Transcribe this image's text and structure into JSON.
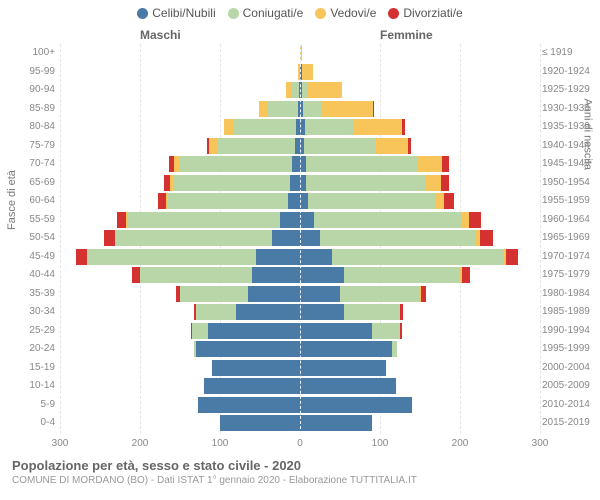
{
  "legend": [
    {
      "label": "Celibi/Nubili",
      "color": "#4a7ba6"
    },
    {
      "label": "Coniugati/e",
      "color": "#b9d6a9"
    },
    {
      "label": "Vedovi/e",
      "color": "#f8c55b"
    },
    {
      "label": "Divorziati/e",
      "color": "#d43131"
    }
  ],
  "gender_left": "Maschi",
  "gender_right": "Femmine",
  "y_left_title": "Fasce di età",
  "y_right_title": "Anni di nascita",
  "title": "Popolazione per età, sesso e stato civile - 2020",
  "subtitle": "COMUNE DI MORDANO (BO) - Dati ISTAT 1° gennaio 2020 - Elaborazione TUTTITALIA.IT",
  "x_ticks": [
    300,
    200,
    100,
    0,
    100,
    200,
    300
  ],
  "x_max": 300,
  "colors": {
    "celibi": "#4a7ba6",
    "coniugati": "#b9d6a9",
    "vedovi": "#f8c55b",
    "divorziati": "#d43131",
    "grid": "#e5e5e5",
    "background": "#ffffff"
  },
  "rows": [
    {
      "age": "100+",
      "birth": "≤ 1919",
      "m": [
        0,
        0,
        0,
        0
      ],
      "f": [
        0,
        0,
        3,
        0
      ]
    },
    {
      "age": "95-99",
      "birth": "1920-1924",
      "m": [
        0,
        0,
        3,
        0
      ],
      "f": [
        2,
        0,
        14,
        0
      ]
    },
    {
      "age": "90-94",
      "birth": "1925-1929",
      "m": [
        1,
        10,
        6,
        0
      ],
      "f": [
        3,
        6,
        44,
        0
      ]
    },
    {
      "age": "85-89",
      "birth": "1930-1934",
      "m": [
        3,
        38,
        10,
        0
      ],
      "f": [
        4,
        22,
        65,
        2
      ]
    },
    {
      "age": "80-84",
      "birth": "1935-1939",
      "m": [
        5,
        78,
        12,
        0
      ],
      "f": [
        6,
        60,
        62,
        3
      ]
    },
    {
      "age": "75-79",
      "birth": "1940-1944",
      "m": [
        6,
        98,
        10,
        2
      ],
      "f": [
        5,
        90,
        40,
        4
      ]
    },
    {
      "age": "70-74",
      "birth": "1945-1949",
      "m": [
        10,
        140,
        8,
        6
      ],
      "f": [
        8,
        140,
        30,
        8
      ]
    },
    {
      "age": "65-69",
      "birth": "1950-1954",
      "m": [
        12,
        145,
        5,
        8
      ],
      "f": [
        8,
        150,
        18,
        10
      ]
    },
    {
      "age": "60-64",
      "birth": "1955-1959",
      "m": [
        15,
        150,
        3,
        10
      ],
      "f": [
        10,
        160,
        10,
        12
      ]
    },
    {
      "age": "55-59",
      "birth": "1960-1964",
      "m": [
        25,
        190,
        2,
        12
      ],
      "f": [
        18,
        185,
        8,
        15
      ]
    },
    {
      "age": "50-54",
      "birth": "1965-1969",
      "m": [
        35,
        195,
        1,
        14
      ],
      "f": [
        25,
        195,
        5,
        16
      ]
    },
    {
      "age": "45-49",
      "birth": "1970-1974",
      "m": [
        55,
        210,
        1,
        14
      ],
      "f": [
        40,
        215,
        3,
        15
      ]
    },
    {
      "age": "40-44",
      "birth": "1975-1979",
      "m": [
        60,
        140,
        0,
        10
      ],
      "f": [
        55,
        145,
        2,
        10
      ]
    },
    {
      "age": "35-39",
      "birth": "1980-1984",
      "m": [
        65,
        85,
        0,
        5
      ],
      "f": [
        50,
        100,
        1,
        6
      ]
    },
    {
      "age": "30-34",
      "birth": "1985-1989",
      "m": [
        80,
        50,
        0,
        3
      ],
      "f": [
        55,
        70,
        0,
        4
      ]
    },
    {
      "age": "25-29",
      "birth": "1990-1994",
      "m": [
        115,
        20,
        0,
        1
      ],
      "f": [
        90,
        35,
        0,
        2
      ]
    },
    {
      "age": "20-24",
      "birth": "1995-1999",
      "m": [
        130,
        3,
        0,
        0
      ],
      "f": [
        115,
        6,
        0,
        0
      ]
    },
    {
      "age": "15-19",
      "birth": "2000-2004",
      "m": [
        110,
        0,
        0,
        0
      ],
      "f": [
        108,
        0,
        0,
        0
      ]
    },
    {
      "age": "10-14",
      "birth": "2005-2009",
      "m": [
        120,
        0,
        0,
        0
      ],
      "f": [
        120,
        0,
        0,
        0
      ]
    },
    {
      "age": "5-9",
      "birth": "2010-2014",
      "m": [
        128,
        0,
        0,
        0
      ],
      "f": [
        140,
        0,
        0,
        0
      ]
    },
    {
      "age": "0-4",
      "birth": "2015-2019",
      "m": [
        100,
        0,
        0,
        0
      ],
      "f": [
        90,
        0,
        0,
        0
      ]
    }
  ]
}
